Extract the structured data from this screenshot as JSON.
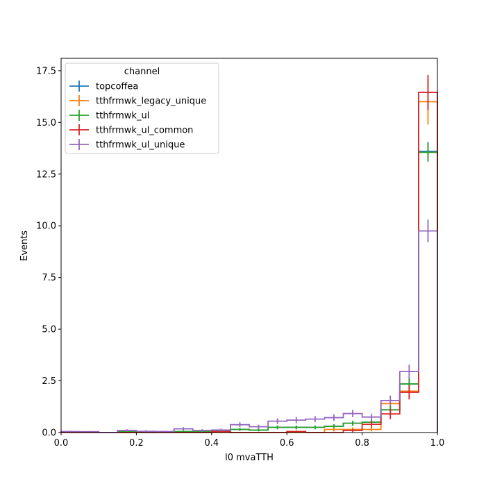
{
  "chart_data": {
    "type": "histogram-step",
    "xlabel": "l0 mvaTTH",
    "ylabel": "Events",
    "xlim": [
      0,
      1
    ],
    "ylim": [
      0,
      18.1
    ],
    "xticks": [
      "0.0",
      "0.2",
      "0.4",
      "0.6",
      "0.8",
      "1.0"
    ],
    "yticks": [
      "0.0",
      "2.5",
      "5.0",
      "7.5",
      "10.0",
      "12.5",
      "15.0",
      "17.5"
    ],
    "legend": {
      "title": "channel",
      "position": "top-left"
    },
    "bin_edges": [
      0,
      0.05,
      0.1,
      0.15,
      0.2,
      0.25,
      0.3,
      0.35,
      0.4,
      0.45,
      0.5,
      0.55,
      0.6,
      0.65,
      0.7,
      0.75,
      0.8,
      0.85,
      0.9,
      0.95,
      1.0
    ],
    "series": [
      {
        "name": "topcoffea",
        "color": "#1f77b4",
        "values": [
          0.03,
          0.02,
          0.0,
          0.06,
          0.04,
          0.03,
          0.05,
          0.05,
          0.07,
          0.15,
          0.12,
          0.25,
          0.25,
          0.25,
          0.3,
          0.45,
          0.5,
          1.1,
          2.35,
          13.6
        ],
        "errors": [
          0.03,
          0.02,
          0.0,
          0.04,
          0.03,
          0.03,
          0.04,
          0.04,
          0.05,
          0.07,
          0.06,
          0.09,
          0.09,
          0.09,
          0.1,
          0.12,
          0.13,
          0.19,
          0.28,
          0.45
        ]
      },
      {
        "name": "tthfrmwk_legacy_unique",
        "color": "#ff7f0e",
        "values": [
          0.0,
          0.0,
          0.0,
          0.0,
          0.0,
          0.0,
          0.0,
          0.0,
          0.0,
          0.0,
          0.0,
          0.0,
          0.0,
          0.0,
          0.15,
          0.15,
          0.15,
          1.4,
          2.0,
          16.0
        ],
        "errors": [
          0.0,
          0.0,
          0.0,
          0.0,
          0.0,
          0.0,
          0.0,
          0.0,
          0.0,
          0.0,
          0.0,
          0.0,
          0.0,
          0.0,
          0.1,
          0.1,
          0.1,
          0.3,
          0.35,
          1.1
        ]
      },
      {
        "name": "tthfrmwk_ul",
        "color": "#2ca02c",
        "values": [
          0.03,
          0.02,
          0.0,
          0.06,
          0.04,
          0.03,
          0.05,
          0.05,
          0.07,
          0.15,
          0.12,
          0.25,
          0.25,
          0.25,
          0.3,
          0.45,
          0.5,
          1.1,
          2.35,
          13.55
        ],
        "errors": [
          0.03,
          0.02,
          0.0,
          0.04,
          0.03,
          0.03,
          0.04,
          0.04,
          0.05,
          0.07,
          0.06,
          0.09,
          0.09,
          0.09,
          0.1,
          0.12,
          0.13,
          0.19,
          0.28,
          0.45
        ]
      },
      {
        "name": "tthfrmwk_ul_common",
        "color": "#d62728",
        "values": [
          0.0,
          0.0,
          0.0,
          0.0,
          0.0,
          0.0,
          0.0,
          0.0,
          0.05,
          0.0,
          0.0,
          0.0,
          0.05,
          0.0,
          0.0,
          0.1,
          0.4,
          0.9,
          1.95,
          16.45
        ],
        "errors": [
          0.0,
          0.0,
          0.0,
          0.0,
          0.0,
          0.0,
          0.0,
          0.0,
          0.05,
          0.0,
          0.0,
          0.0,
          0.05,
          0.0,
          0.0,
          0.08,
          0.16,
          0.25,
          0.35,
          0.85
        ]
      },
      {
        "name": "tthfrmwk_ul_unique",
        "color": "#9467bd",
        "values": [
          0.05,
          0.04,
          0.0,
          0.1,
          0.06,
          0.05,
          0.18,
          0.1,
          0.12,
          0.38,
          0.28,
          0.55,
          0.6,
          0.65,
          0.72,
          0.92,
          0.75,
          1.55,
          2.95,
          9.75
        ],
        "errors": [
          0.04,
          0.04,
          0.0,
          0.06,
          0.05,
          0.04,
          0.08,
          0.06,
          0.07,
          0.12,
          0.1,
          0.14,
          0.15,
          0.15,
          0.16,
          0.18,
          0.16,
          0.24,
          0.33,
          0.55
        ]
      }
    ]
  }
}
